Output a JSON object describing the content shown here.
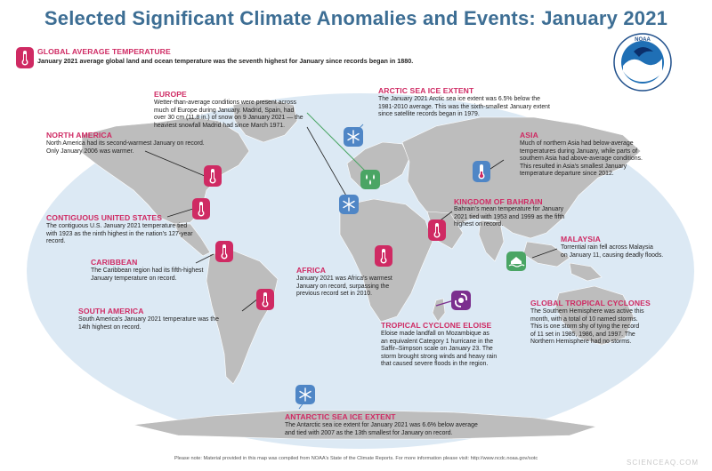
{
  "title": "Selected Significant Climate Anomalies and Events: January 2021",
  "global_avg": {
    "heading": "GLOBAL AVERAGE TEMPERATURE",
    "body": "January 2021 average global land and ocean temperature was the seventh highest for January since records began in 1880."
  },
  "europe": {
    "heading": "EUROPE",
    "lines": [
      "Wetter-than-average conditions were present across",
      "much of Europe during January. Madrid, Spain, had",
      "over 30 cm (11.8 in.) of snow on 9 January 2021 — the",
      "heaviest snowfall Madrid had since March 1971."
    ]
  },
  "arctic": {
    "heading": "ARCTIC SEA ICE EXTENT",
    "lines": [
      "The January 2021 Arctic sea ice extent was 6.5% below the",
      "1981-2010 average. This was the sixth-smallest January extent",
      "since satellite records began in 1979."
    ]
  },
  "north_america": {
    "heading": "NORTH AMERICA",
    "lines": [
      "North America had its second-warmest January on record.",
      "Only January 2006 was warmer."
    ]
  },
  "asia": {
    "heading": "ASIA",
    "lines": [
      "Much of northern Asia had below-average",
      "temperatures during January, while parts of",
      "southern Asia had above-average conditions.",
      "This resulted in Asia's smallest January",
      "temperature departure since 2012."
    ]
  },
  "bahrain": {
    "heading": "KINGDOM OF BAHRAIN",
    "lines": [
      "Bahrain's mean temperature for January",
      "2021 tied with 1953 and 1999 as the fifth",
      "highest on record."
    ]
  },
  "contiguous_us": {
    "heading": "CONTIGUOUS UNITED STATES",
    "lines": [
      "The contiguous U.S. January 2021 temperature tied",
      "with 1923 as the ninth highest in the nation's 127-year",
      "record."
    ]
  },
  "malaysia": {
    "heading": "MALAYSIA",
    "lines": [
      "Torrential rain fell across Malaysia",
      "on January 11, causing deadly floods."
    ]
  },
  "caribbean": {
    "heading": "CARIBBEAN",
    "lines": [
      "The Caribbean region had its fifth-highest",
      "January temperature on record."
    ]
  },
  "africa": {
    "heading": "AFRICA",
    "lines": [
      "January 2021 was Africa's warmest",
      "January on record, surpassing the",
      "previous record set in 2010."
    ]
  },
  "south_america": {
    "heading": "SOUTH AMERICA",
    "lines": [
      "South America's January 2021 temperature was the",
      "14th highest on record."
    ]
  },
  "global_cyclones": {
    "heading": "GLOBAL TROPICAL CYCLONES",
    "lines": [
      "The Southern Hemisphere was active this",
      "month, with a total of 10 named storms.",
      "This is one storm shy of tying the record",
      "of 11 set in 1985, 1986, and 1997. The",
      "Northern Hemisphere had no storms."
    ]
  },
  "eloise": {
    "heading": "TROPICAL CYCLONE ELOISE",
    "lines": [
      "Eloise made landfall on Mozambique as",
      "an equivalent Category 1 hurricane in the",
      "Saffir–Simpson scale on January 23. The",
      "storm brought strong winds and heavy rain",
      "that caused severe floods in the region."
    ]
  },
  "antarctic": {
    "heading": "ANTARCTIC SEA ICE EXTENT",
    "lines": [
      "The Antarctic sea ice extent for January 2021 was 6.6% below average",
      "and tied with 2007 as the 13th smallest for January on record."
    ]
  },
  "logo": {
    "text": "NOAA"
  },
  "footer": "Please note: Material provided in this map was compiled from NOAA's State of the Climate Reports. For more information please visit: http://www.ncdc.noaa.gov/sotc",
  "watermark": "SCIENCEAQ.COM",
  "colors": {
    "title": "#3d6e94",
    "heading": "#cf2a63",
    "warm_icon": "#cf2a63",
    "ice_icon": "#4f86c6",
    "rain_icon": "#4aa564",
    "cyclone_icon": "#7b2f8e",
    "ocean": "#dce9f4",
    "land": "#bdbdbd"
  },
  "icons": {
    "warm": "thermometer-icon",
    "cold": "thermometer-cold-icon",
    "ice": "snowflake-icon",
    "rain": "raindrops-icon",
    "flood": "flood-icon",
    "cyclone": "cyclone-icon"
  }
}
